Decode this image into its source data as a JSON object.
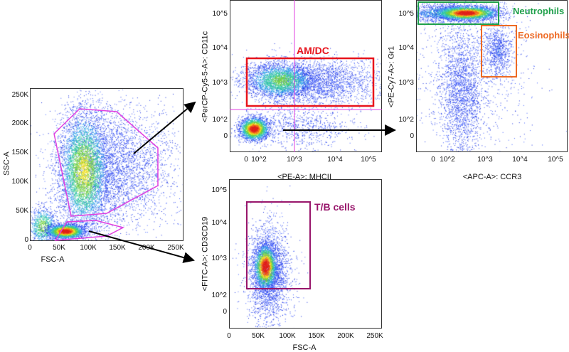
{
  "plots": [
    {
      "id": "scatter",
      "xlabel": "FSC-A",
      "ylabel": "SSC-A",
      "xticks": [
        "0",
        "50K",
        "100K",
        "150K",
        "200K",
        "250K"
      ],
      "yticks": [
        "0",
        "50K",
        "100K",
        "150K",
        "200K",
        "250K"
      ]
    },
    {
      "id": "cd11c",
      "xlabel": "<PE-A>: MHCII",
      "ylabel": "<PerCP-Cy5-5-A>: CD11c",
      "xticks": [
        "0",
        "10^2",
        "10^3",
        "10^4",
        "10^5"
      ],
      "yticks": [
        "0",
        "10^2",
        "10^3",
        "10^4",
        "10^5"
      ]
    },
    {
      "id": "gr1",
      "xlabel": "<APC-A>: CCR3",
      "ylabel": "<PE-Cy7-A>: Gr1",
      "xticks": [
        "0",
        "10^2",
        "10^3",
        "10^4",
        "10^5"
      ],
      "yticks": [
        "0",
        "10^2",
        "10^3",
        "10^4",
        "10^5"
      ]
    },
    {
      "id": "cd3cd19",
      "xlabel": "FSC-A",
      "ylabel": "<FITC-A>: CD3CD19",
      "xticks": [
        "0",
        "50K",
        "100K",
        "150K",
        "200K",
        "250K"
      ],
      "yticks": [
        "0",
        "10^2",
        "10^3",
        "10^4",
        "10^5"
      ]
    }
  ],
  "gates": {
    "amdc": {
      "label": "AM/DC",
      "color": "#e8141c"
    },
    "neutrophils": {
      "label": "Neutrophils",
      "color": "#1fa04a"
    },
    "eosinophils": {
      "label": "Eosinophils",
      "color": "#ee6a24"
    },
    "tb": {
      "label": "T/B cells",
      "color": "#98166b"
    },
    "scatter_gate_color": "#e03fe0",
    "quadrant_color": "#e03fe0"
  }
}
